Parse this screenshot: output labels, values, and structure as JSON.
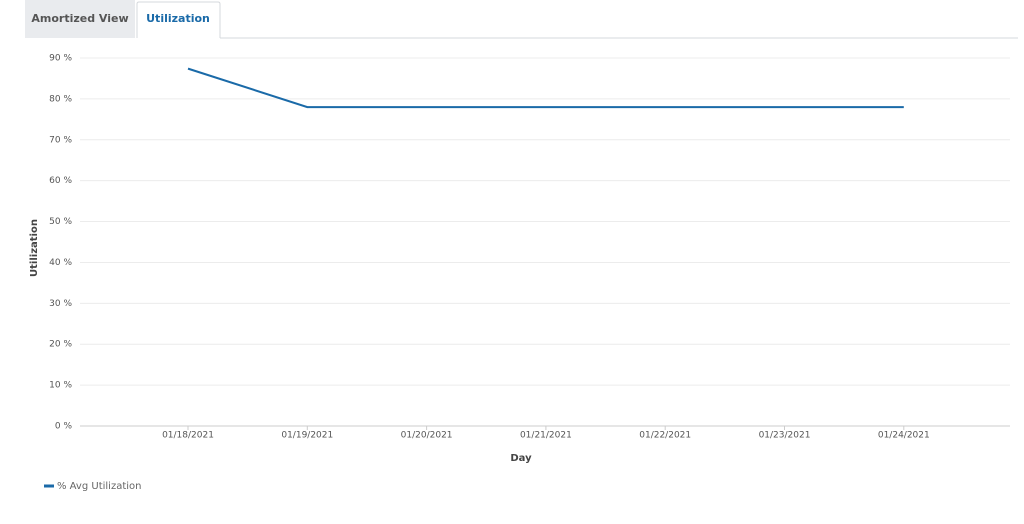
{
  "tabs": [
    "Amortized View",
    "Utilization"
  ],
  "chart_data": {
    "type": "line",
    "xlabel": "Day",
    "ylabel": "Utilization",
    "categories": [
      "01/18/2021",
      "01/19/2021",
      "01/20/2021",
      "01/21/2021",
      "01/22/2021",
      "01/23/2021",
      "01/24/2021"
    ],
    "series": [
      {
        "name": "% Avg Utilization",
        "color": "#1a6aa8",
        "values": [
          87.4,
          78,
          78,
          78,
          78,
          78,
          78
        ]
      }
    ],
    "ylim": [
      0,
      90
    ],
    "yticks": [
      {
        "value": 0,
        "label": "0 %"
      },
      {
        "value": 10,
        "label": "10 %"
      },
      {
        "value": 20,
        "label": "20 %"
      },
      {
        "value": 30,
        "label": "30 %"
      },
      {
        "value": 40,
        "label": "40 %"
      },
      {
        "value": 50,
        "label": "50 %"
      },
      {
        "value": 60,
        "label": "60 %"
      },
      {
        "value": 70,
        "label": "70 %"
      },
      {
        "value": 80,
        "label": "80 %"
      },
      {
        "value": 90,
        "label": "90 %"
      }
    ],
    "grid": true,
    "legend": "bottom-left"
  }
}
